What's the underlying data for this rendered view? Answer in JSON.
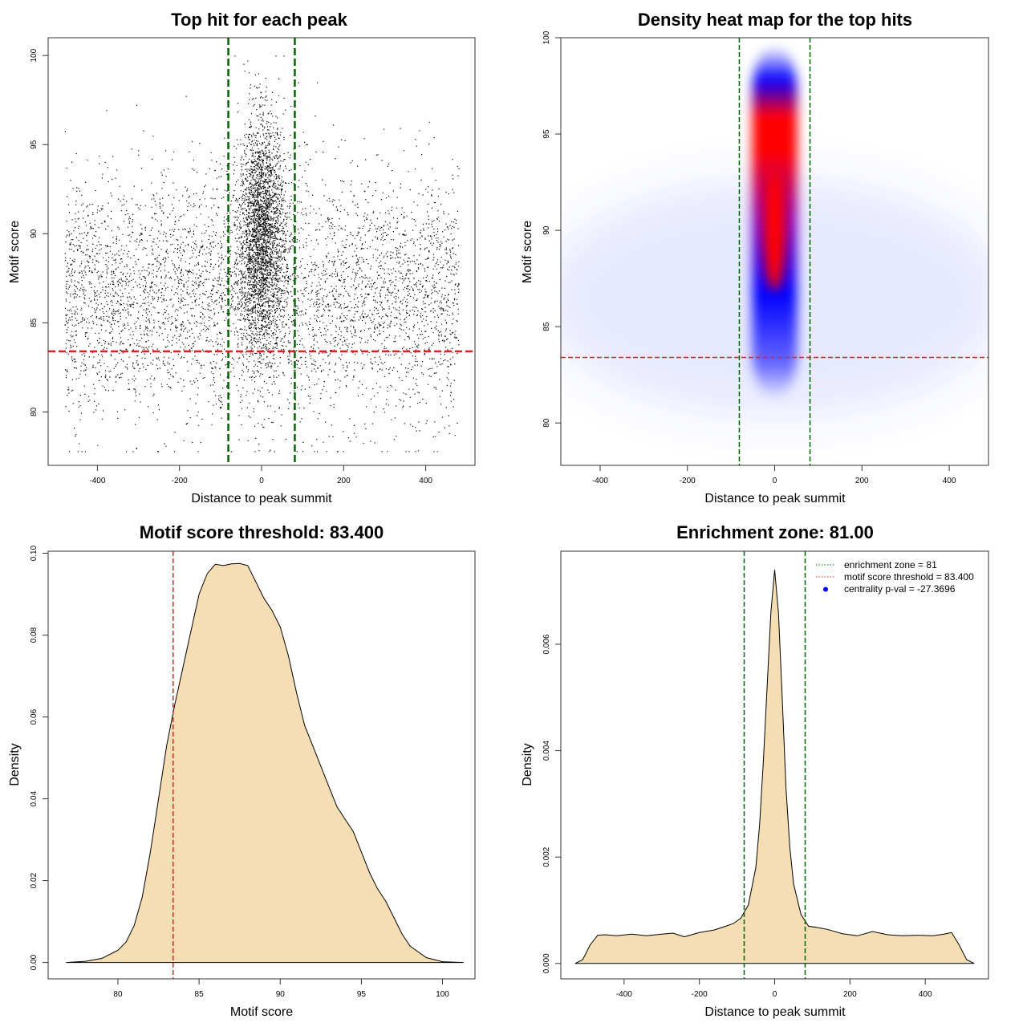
{
  "chart_data": [
    {
      "id": "p1",
      "type": "scatter",
      "title": "Top hit for each peak",
      "xlabel": "Distance to peak summit",
      "ylabel": "Motif score",
      "xlim": [
        -520,
        520
      ],
      "ylim": [
        77,
        101
      ],
      "xticks": [
        -400,
        -200,
        0,
        200,
        400
      ],
      "xtick_labels": [
        "-400",
        "-200",
        "0",
        "200",
        "400"
      ],
      "yticks": [
        80,
        85,
        90,
        95,
        100
      ],
      "ytick_labels": [
        "80",
        "85",
        "90",
        "95",
        "100"
      ],
      "point_distribution": {
        "background": {
          "count": 4800,
          "x_range": [
            -480,
            480
          ],
          "score_mean": 86.5,
          "score_sd": 3.4
        },
        "central": {
          "count": 3000,
          "x_mean": 0,
          "x_sd": 28,
          "score_mean": 90,
          "score_sd": 3.2
        }
      },
      "hlines": [
        {
          "y": 83.4,
          "color": "#dd2222",
          "label": "motif score threshold"
        }
      ],
      "vlines": [
        {
          "x": -81,
          "color": "#006400"
        },
        {
          "x": 81,
          "color": "#006400"
        }
      ]
    },
    {
      "id": "p2",
      "type": "heatmap",
      "title": "Density heat map for the top hits",
      "xlabel": "Distance to peak summit",
      "ylabel": "Motif score",
      "xlim": [
        -490,
        490
      ],
      "ylim": [
        77.8,
        100
      ],
      "xticks": [
        -400,
        -200,
        0,
        200,
        400
      ],
      "xtick_labels": [
        "-400",
        "-200",
        "0",
        "200",
        "400"
      ],
      "yticks": [
        80,
        85,
        90,
        95,
        100
      ],
      "ytick_labels": [
        "80",
        "85",
        "90",
        "95",
        "100"
      ],
      "colors": [
        "#ffffff",
        "#0000ff",
        "#ff0000"
      ],
      "density_peak": {
        "x": 0,
        "y": 90
      },
      "hlines": [
        {
          "y": 83.4,
          "color": "#dd2222"
        }
      ],
      "vlines": [
        {
          "x": -81,
          "color": "#006400"
        },
        {
          "x": 81,
          "color": "#006400"
        }
      ]
    },
    {
      "id": "p3",
      "type": "area",
      "title": "Motif score threshold: 83.400",
      "xlabel": "Motif score",
      "ylabel": "Density",
      "xlim": [
        75.7,
        102
      ],
      "ylim": [
        -0.004,
        0.1005
      ],
      "xticks": [
        80,
        85,
        90,
        95,
        100
      ],
      "xtick_labels": [
        "80",
        "85",
        "90",
        "95",
        "100"
      ],
      "yticks": [
        0,
        0.02,
        0.04,
        0.06,
        0.08,
        0.1
      ],
      "ytick_labels": [
        "0.00",
        "0.02",
        "0.04",
        "0.06",
        "0.08",
        "0.10"
      ],
      "fill": "#f5deb3",
      "x": [
        76.8,
        78,
        79,
        80,
        80.5,
        81,
        81.5,
        82,
        82.5,
        83,
        83.5,
        84,
        84.5,
        85,
        85.5,
        86,
        86.5,
        87,
        87.5,
        88,
        88.5,
        89,
        89.5,
        90,
        90.5,
        91,
        91.5,
        92,
        92.5,
        93,
        93.5,
        94,
        94.5,
        95,
        95.5,
        96,
        96.5,
        97,
        97.5,
        98,
        99,
        100,
        101.3
      ],
      "y": [
        0,
        0.0003,
        0.001,
        0.003,
        0.005,
        0.009,
        0.016,
        0.027,
        0.04,
        0.053,
        0.063,
        0.072,
        0.081,
        0.09,
        0.095,
        0.0973,
        0.097,
        0.0974,
        0.0975,
        0.097,
        0.093,
        0.089,
        0.086,
        0.082,
        0.075,
        0.066,
        0.058,
        0.053,
        0.048,
        0.043,
        0.038,
        0.035,
        0.032,
        0.027,
        0.022,
        0.018,
        0.015,
        0.011,
        0.007,
        0.004,
        0.0012,
        0.0002,
        0
      ],
      "vlines": [
        {
          "x": 83.4,
          "color": "#dd2222"
        }
      ]
    },
    {
      "id": "p4",
      "type": "area",
      "title": "Enrichment zone: 81.00",
      "xlabel": "Distance to peak summit",
      "ylabel": "Density",
      "xlim": [
        -568,
        568
      ],
      "ylim": [
        -0.00029,
        0.00775
      ],
      "xticks": [
        -400,
        -200,
        0,
        200,
        400
      ],
      "xtick_labels": [
        "-400",
        "-200",
        "0",
        "200",
        "400"
      ],
      "yticks": [
        0,
        0.002,
        0.004,
        0.006
      ],
      "ytick_labels": [
        "0.000",
        "0.002",
        "0.004",
        "0.006"
      ],
      "fill": "#f5deb3",
      "x": [
        -530,
        -510,
        -490,
        -470,
        -450,
        -420,
        -380,
        -340,
        -300,
        -270,
        -240,
        -200,
        -160,
        -130,
        -110,
        -90,
        -70,
        -50,
        -40,
        -30,
        -20,
        -10,
        0,
        10,
        20,
        30,
        40,
        50,
        70,
        90,
        110,
        140,
        180,
        220,
        260,
        300,
        340,
        380,
        420,
        450,
        470,
        490,
        510,
        530
      ],
      "y": [
        0,
        7e-05,
        0.00035,
        0.00053,
        0.00054,
        0.00052,
        0.00055,
        0.00052,
        0.00055,
        0.00057,
        0.0005,
        0.00058,
        0.00063,
        0.0007,
        0.00075,
        0.00085,
        0.0011,
        0.0018,
        0.0026,
        0.0038,
        0.0052,
        0.0066,
        0.0074,
        0.0066,
        0.005,
        0.0033,
        0.0022,
        0.0015,
        0.00092,
        0.0007,
        0.00068,
        0.00064,
        0.00056,
        0.00052,
        0.0006,
        0.00054,
        0.00052,
        0.00053,
        0.00052,
        0.00055,
        0.00058,
        0.00035,
        7e-05,
        0
      ],
      "vlines": [
        {
          "x": -81,
          "color": "#006400"
        },
        {
          "x": 81,
          "color": "#006400"
        }
      ],
      "legend": {
        "position": "top-right",
        "entries": [
          {
            "label": "enrichment zone = 81",
            "style": "dotted",
            "color": "#006400"
          },
          {
            "label": "motif score threshold = 83.400",
            "style": "dotted",
            "color": "#dd2222"
          },
          {
            "label": "centrality p-val = -27.3696",
            "style": "point",
            "color": "#0000ff"
          }
        ]
      }
    }
  ]
}
